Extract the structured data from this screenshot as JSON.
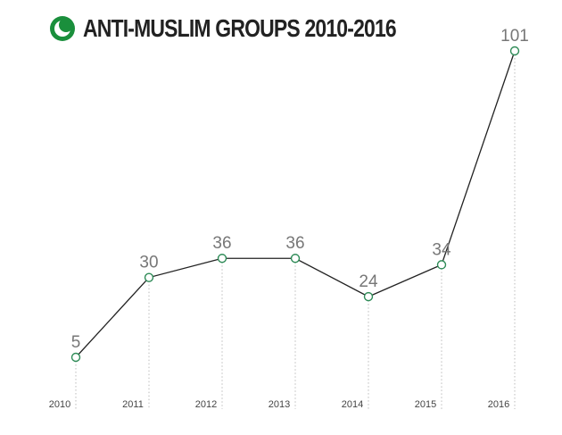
{
  "chart_data": {
    "type": "line",
    "title": "ANTI-MUSLIM GROUPS 2010-2016",
    "categories": [
      "2010",
      "2011",
      "2012",
      "2013",
      "2014",
      "2015",
      "2016"
    ],
    "values": [
      5,
      30,
      36,
      36,
      24,
      34,
      101
    ],
    "ylim": [
      0,
      101
    ],
    "grid": false,
    "legend": "none",
    "colors": {
      "line": "#222222",
      "marker_stroke": "#2e8b57",
      "marker_fill": "#ffffff",
      "logo": "#1a8f3c",
      "drop_line": "#bbbbbb"
    }
  }
}
